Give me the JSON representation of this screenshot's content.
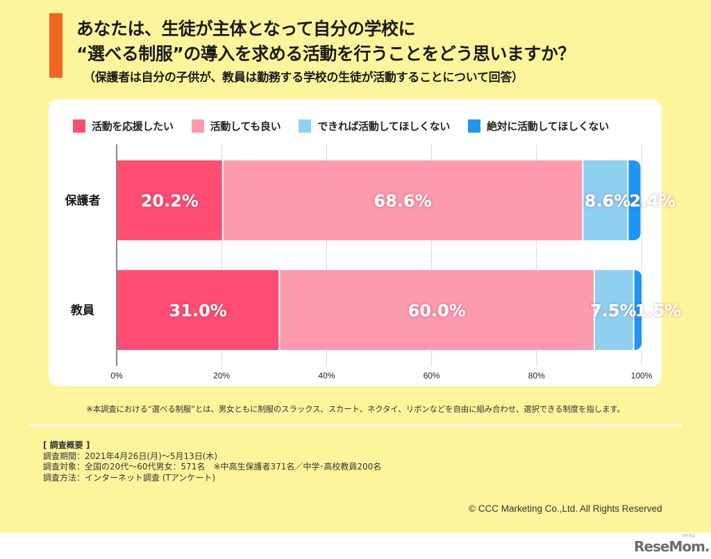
{
  "header": {
    "accent_color": "#f36523",
    "title_line1": "あなたは、生徒が主体となって自分の学校に",
    "title_line2": "“選べる制服”の導入を求める活動を行うことをどう思いますか？",
    "subtitle": "（保護者は自分の子供が、教員は勤務する学校の生徒が活動することについて回答）"
  },
  "chart_data": {
    "type": "bar",
    "orientation": "horizontal",
    "stacked": true,
    "title": "あなたは、生徒が主体となって自分の学校に“選べる制服”の導入を求める活動を行うことをどう思いますか？",
    "categories": [
      "保護者",
      "教員"
    ],
    "series": [
      {
        "name": "活動を応援したい",
        "color": "#ff4d74",
        "values": [
          20.2,
          31.0
        ],
        "labels": [
          "20.2%",
          "31.0%"
        ]
      },
      {
        "name": "活動しても良い",
        "color": "#fd9aae",
        "values": [
          68.6,
          60.0
        ],
        "labels": [
          "68.6%",
          "60.0%"
        ]
      },
      {
        "name": "できれば活動してほしくない",
        "color": "#8fd0f1",
        "values": [
          8.6,
          7.5
        ],
        "labels": [
          "8.6%",
          "7.5%"
        ]
      },
      {
        "name": "絶対に活動してほしくない",
        "color": "#1e96f5",
        "values": [
          2.4,
          1.5
        ],
        "labels": [
          "2.4%",
          "1.5%"
        ]
      }
    ],
    "xlabel": "",
    "ylabel": "",
    "xlim": [
      0,
      100
    ],
    "x_ticks": [
      "0%",
      "20%",
      "40%",
      "60%",
      "80%",
      "100%"
    ],
    "x_tick_values": [
      0,
      20,
      40,
      60,
      80,
      100
    ],
    "grid": true,
    "legend_position": "top"
  },
  "footnote": "※本調査における“選べる制服”とは、男女ともに制服のスラックス、スカート、ネクタイ、リボンなどを自由に組み合わせ、選択できる制度を指します。",
  "survey": {
    "heading": "[ 調査概要 ]",
    "lines": [
      "調査期間：2021年4月26日(月)〜5月13日(木)",
      "調査対象：全国の20代〜60代男女：571名　※中高生保護者371名／中学･高校教員200名",
      "調査方法：インターネット調査 (Tアンケート)"
    ]
  },
  "copyright": "© CCC Marketing Co.,Ltd. All Rights Reserved",
  "logo": {
    "text": "ReseMom.",
    "ruby": "リセマム"
  }
}
